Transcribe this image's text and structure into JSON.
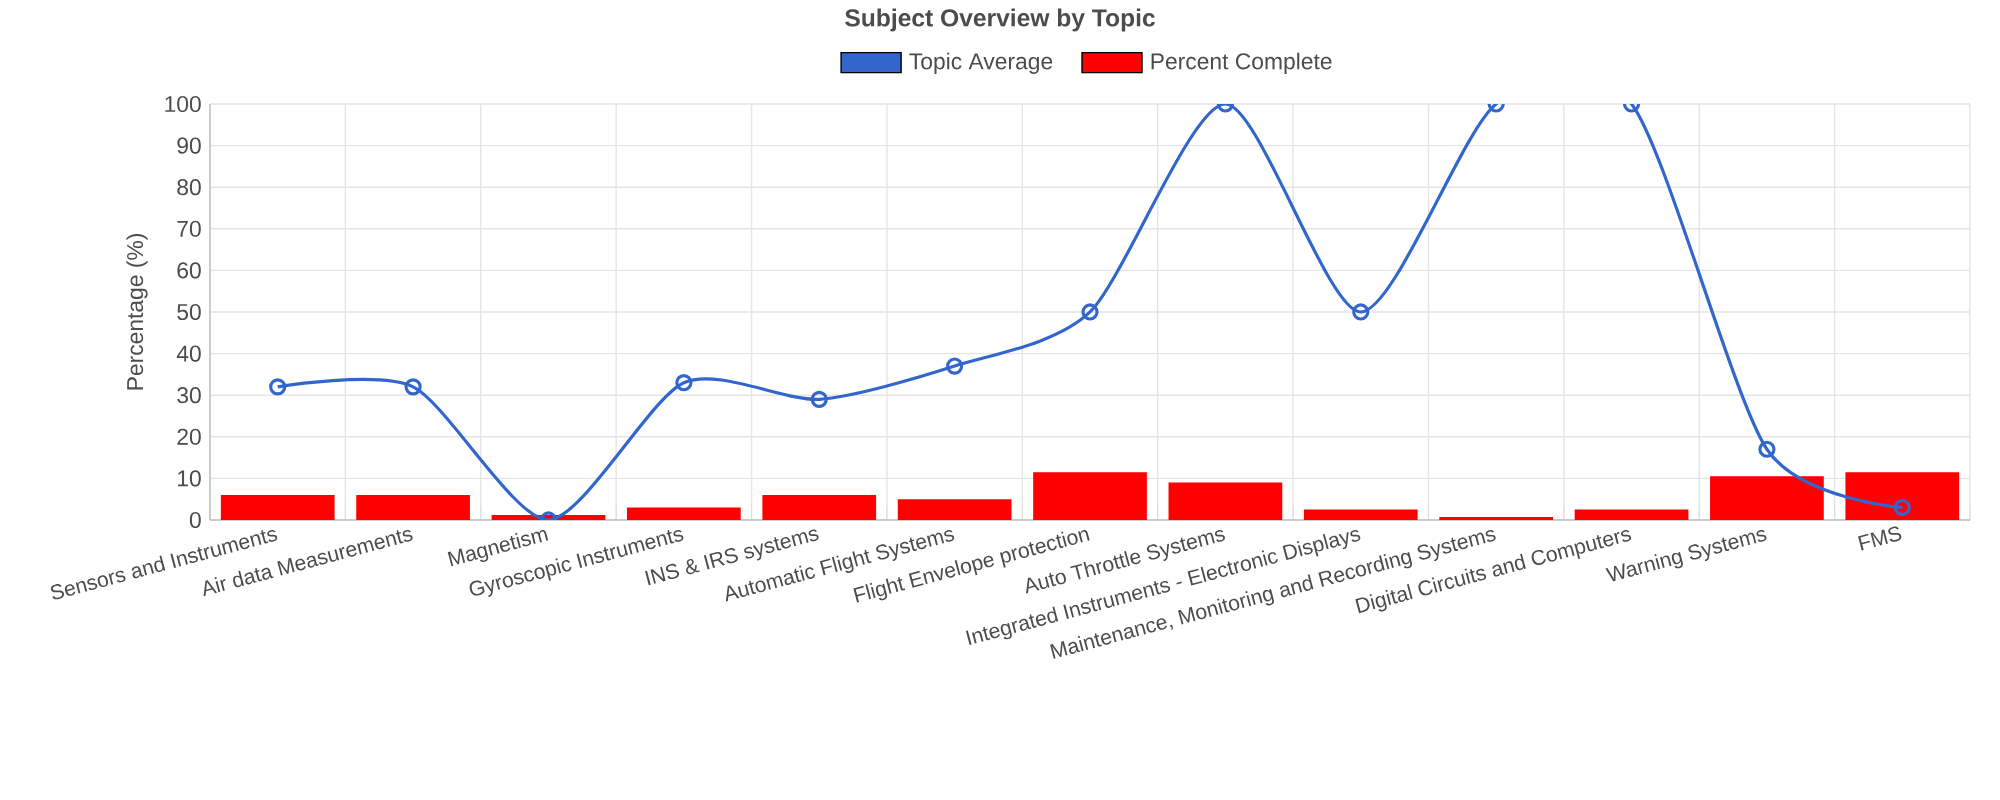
{
  "chart_data": {
    "type": "bar",
    "title": "Subject Overview by Topic",
    "ylabel": "Percentage (%)",
    "categories": [
      "Sensors and Instruments",
      "Air data Measurements",
      "Magnetism",
      "Gyroscopic Instruments",
      "INS & IRS systems",
      "Automatic Flight Systems",
      "Flight Envelope protection",
      "Auto Throttle Systems",
      "Integrated Instruments - Electronic Displays",
      "Maintenance, Monitoring and Recording Systems",
      "Digital Circuits and Computers",
      "Warning Systems",
      "FMS"
    ],
    "series": [
      {
        "name": "Topic Average",
        "type": "line",
        "color": "#3366cc",
        "marker": "circle",
        "values": [
          32,
          32,
          0,
          33,
          29,
          37,
          50,
          100,
          50,
          100,
          100,
          17,
          3
        ]
      },
      {
        "name": "Percent Complete",
        "color": "#ff0000",
        "values": [
          6,
          6,
          1.2,
          3,
          6,
          5,
          11.5,
          9,
          2.5,
          0.7,
          2.5,
          10.5,
          11.5
        ]
      }
    ],
    "ylim": [
      0,
      100
    ],
    "yticks": [
      0,
      10,
      20,
      30,
      40,
      50,
      60,
      70,
      80,
      90,
      100
    ],
    "grid": true,
    "legend": "top"
  }
}
